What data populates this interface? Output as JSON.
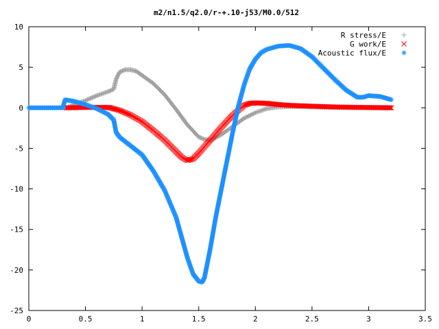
{
  "chart_data": {
    "type": "scatter",
    "title": "m2/n1.5/q2.0/r-+.10-j53/M0.0/512",
    "xlabel": "",
    "ylabel": "",
    "xlim": [
      0,
      3.5
    ],
    "ylim": [
      -25,
      10
    ],
    "x_ticks": [
      "0",
      "0.5",
      "1",
      "1.5",
      "2",
      "2.5",
      "3",
      "3.5"
    ],
    "y_ticks": [
      "10",
      "5",
      "0",
      "-5",
      "-10",
      "-15",
      "-20",
      "-25"
    ],
    "grid": false,
    "legend_position": "top-right",
    "series": [
      {
        "name": "R stress/E",
        "marker": "+",
        "color": "#a0a0a0",
        "x": [
          0.33,
          0.4,
          0.5,
          0.6,
          0.7,
          0.75,
          0.77,
          0.8,
          0.85,
          0.9,
          0.95,
          1.0,
          1.1,
          1.2,
          1.3,
          1.4,
          1.5,
          1.55,
          1.6,
          1.65,
          1.7,
          1.8,
          1.9,
          2.0,
          2.1,
          2.2,
          2.3,
          2.4,
          2.5,
          2.7,
          2.9,
          3.1,
          3.2
        ],
        "y": [
          0.0,
          0.4,
          0.9,
          1.5,
          2.0,
          2.3,
          3.5,
          4.4,
          4.7,
          4.7,
          4.5,
          4.0,
          3.0,
          1.6,
          -0.2,
          -2.1,
          -3.6,
          -3.9,
          -4.0,
          -3.7,
          -3.3,
          -2.3,
          -1.3,
          -0.6,
          -0.1,
          0.1,
          0.15,
          0.15,
          0.1,
          0.05,
          0.05,
          0.05,
          0.05
        ]
      },
      {
        "name": "G work/E",
        "marker": "x",
        "color": "#ff0000",
        "x": [
          0.33,
          0.5,
          0.6,
          0.7,
          0.72,
          0.8,
          0.9,
          1.0,
          1.1,
          1.2,
          1.3,
          1.35,
          1.4,
          1.45,
          1.5,
          1.6,
          1.7,
          1.8,
          1.9,
          1.95,
          2.0,
          2.1,
          2.2,
          2.3,
          2.5,
          2.7,
          2.9,
          3.1,
          3.2
        ],
        "y": [
          0.0,
          0.05,
          0.05,
          0.05,
          0.0,
          -0.3,
          -0.9,
          -1.7,
          -2.8,
          -4.0,
          -5.4,
          -6.1,
          -6.5,
          -6.3,
          -5.6,
          -4.0,
          -2.4,
          -0.9,
          0.3,
          0.55,
          0.6,
          0.55,
          0.4,
          0.3,
          0.2,
          0.1,
          0.05,
          0.02,
          0.0
        ]
      },
      {
        "name": "Acoustic flux/E",
        "marker": "*",
        "color": "#1e90ff",
        "x": [
          0.0,
          0.1,
          0.2,
          0.3,
          0.32,
          0.4,
          0.5,
          0.6,
          0.7,
          0.75,
          0.77,
          0.8,
          0.9,
          1.0,
          1.1,
          1.2,
          1.3,
          1.35,
          1.4,
          1.45,
          1.5,
          1.53,
          1.55,
          1.6,
          1.65,
          1.7,
          1.75,
          1.8,
          1.85,
          1.9,
          1.95,
          2.0,
          2.05,
          2.1,
          2.2,
          2.3,
          2.4,
          2.5,
          2.6,
          2.7,
          2.8,
          2.9,
          2.95,
          3.0,
          3.1,
          3.2
        ],
        "y": [
          0.0,
          0.0,
          0.0,
          0.0,
          1.0,
          0.8,
          0.4,
          -0.1,
          -0.8,
          -1.5,
          -3.0,
          -3.6,
          -4.7,
          -5.8,
          -7.8,
          -10.2,
          -13.5,
          -16.0,
          -18.5,
          -20.5,
          -21.4,
          -21.5,
          -21.0,
          -17.5,
          -13.5,
          -10.0,
          -6.5,
          -3.0,
          0.2,
          2.8,
          4.8,
          6.0,
          6.8,
          7.2,
          7.6,
          7.7,
          7.3,
          6.3,
          4.9,
          3.5,
          2.2,
          1.3,
          1.3,
          1.5,
          1.4,
          1.0
        ]
      }
    ]
  }
}
